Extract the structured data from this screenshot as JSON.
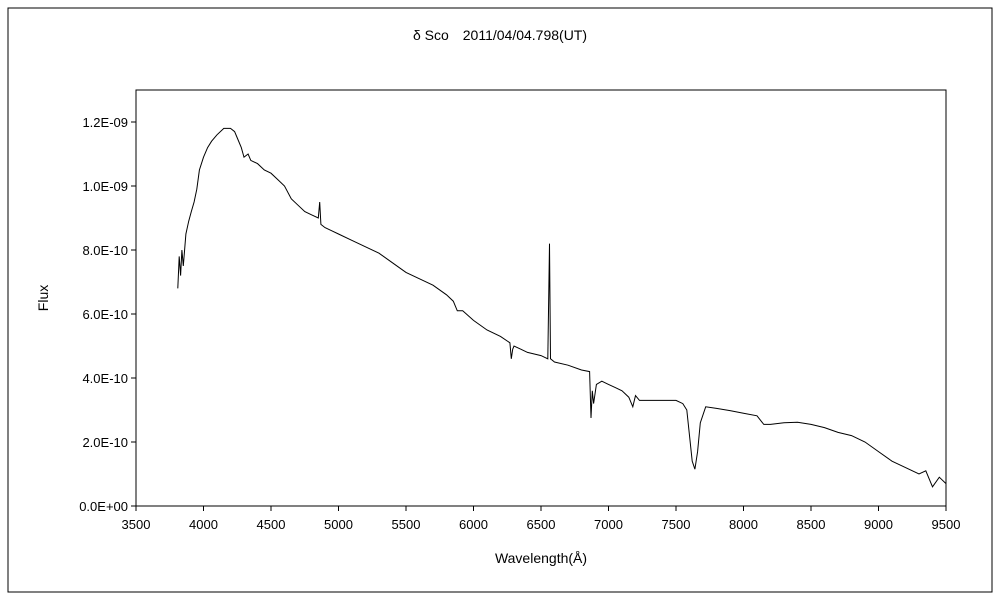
{
  "chart_data": {
    "type": "line",
    "title": "δ Sco　2011/04/04.798(UT)",
    "xlabel": "Wavelength(Å)",
    "ylabel": "Flux",
    "xlim": [
      3500,
      9500
    ],
    "ylim": [
      0,
      1.3e-09
    ],
    "x_ticks": [
      3500,
      4000,
      4500,
      5000,
      5500,
      6000,
      6500,
      7000,
      7500,
      8000,
      8500,
      9000,
      9500
    ],
    "x_tick_labels": [
      "3500",
      "4000",
      "4500",
      "5000",
      "5500",
      "6000",
      "6500",
      "7000",
      "7500",
      "8000",
      "8500",
      "9000",
      "9500"
    ],
    "y_ticks": [
      0,
      2e-10,
      4e-10,
      6e-10,
      8e-10,
      1e-09,
      1.2e-09
    ],
    "y_tick_labels": [
      "0.0E+00",
      "2.0E-10",
      "4.0E-10",
      "6.0E-10",
      "8.0E-10",
      "1.0E-09",
      "1.2E-09"
    ],
    "grid": false,
    "legend": "none",
    "line_color": "#000000",
    "series": [
      {
        "x": [
          3810,
          3820,
          3830,
          3840,
          3850,
          3870,
          3890,
          3910,
          3930,
          3950,
          3970,
          4000,
          4030,
          4060,
          4100,
          4150,
          4200,
          4230,
          4250,
          4280,
          4300,
          4330,
          4350,
          4400,
          4450,
          4500,
          4550,
          4600,
          4650,
          4700,
          4750,
          4800,
          4850,
          4861,
          4870,
          4900,
          4950,
          5000,
          5100,
          5200,
          5300,
          5400,
          5500,
          5600,
          5700,
          5800,
          5850,
          5880,
          5900,
          5920,
          6000,
          6100,
          6200,
          6270,
          6280,
          6290,
          6300,
          6350,
          6400,
          6500,
          6550,
          6563,
          6570,
          6600,
          6700,
          6800,
          6860,
          6870,
          6880,
          6890,
          6910,
          6950,
          7000,
          7050,
          7100,
          7150,
          7180,
          7200,
          7230,
          7260,
          7300,
          7400,
          7500,
          7550,
          7580,
          7600,
          7620,
          7640,
          7660,
          7680,
          7720,
          7800,
          7900,
          8000,
          8100,
          8150,
          8200,
          8300,
          8400,
          8500,
          8600,
          8700,
          8800,
          8900,
          9000,
          9100,
          9200,
          9300,
          9350,
          9400,
          9450,
          9500
        ],
        "y": [
          6.8e-10,
          7.8e-10,
          7.2e-10,
          8e-10,
          7.5e-10,
          8.5e-10,
          8.9e-10,
          9.2e-10,
          9.5e-10,
          9.9e-10,
          1.05e-09,
          1.09e-09,
          1.12e-09,
          1.14e-09,
          1.16e-09,
          1.18e-09,
          1.18e-09,
          1.17e-09,
          1.15e-09,
          1.12e-09,
          1.09e-09,
          1.1e-09,
          1.08e-09,
          1.07e-09,
          1.05e-09,
          1.04e-09,
          1.02e-09,
          1e-09,
          9.6e-10,
          9.4e-10,
          9.2e-10,
          9.1e-10,
          9e-10,
          9.5e-10,
          8.8e-10,
          8.7e-10,
          8.6e-10,
          8.5e-10,
          8.3e-10,
          8.1e-10,
          7.9e-10,
          7.6e-10,
          7.3e-10,
          7.1e-10,
          6.9e-10,
          6.6e-10,
          6.4e-10,
          6.1e-10,
          6.1e-10,
          6.1e-10,
          5.8e-10,
          5.5e-10,
          5.3e-10,
          5.1e-10,
          4.6e-10,
          4.9e-10,
          5e-10,
          4.9e-10,
          4.8e-10,
          4.7e-10,
          4.6e-10,
          8.2e-10,
          4.6e-10,
          4.5e-10,
          4.4e-10,
          4.25e-10,
          4.2e-10,
          2.75e-10,
          3.6e-10,
          3.2e-10,
          3.8e-10,
          3.9e-10,
          3.8e-10,
          3.7e-10,
          3.6e-10,
          3.4e-10,
          3.1e-10,
          3.45e-10,
          3.3e-10,
          3.3e-10,
          3.3e-10,
          3.3e-10,
          3.3e-10,
          3.2e-10,
          3e-10,
          2.2e-10,
          1.4e-10,
          1.15e-10,
          1.7e-10,
          2.6e-10,
          3.1e-10,
          3.05e-10,
          2.98e-10,
          2.9e-10,
          2.82e-10,
          2.55e-10,
          2.55e-10,
          2.6e-10,
          2.62e-10,
          2.55e-10,
          2.45e-10,
          2.3e-10,
          2.2e-10,
          2e-10,
          1.7e-10,
          1.4e-10,
          1.2e-10,
          1e-10,
          1.1e-10,
          6e-11,
          9e-11,
          7e-11
        ]
      }
    ]
  }
}
